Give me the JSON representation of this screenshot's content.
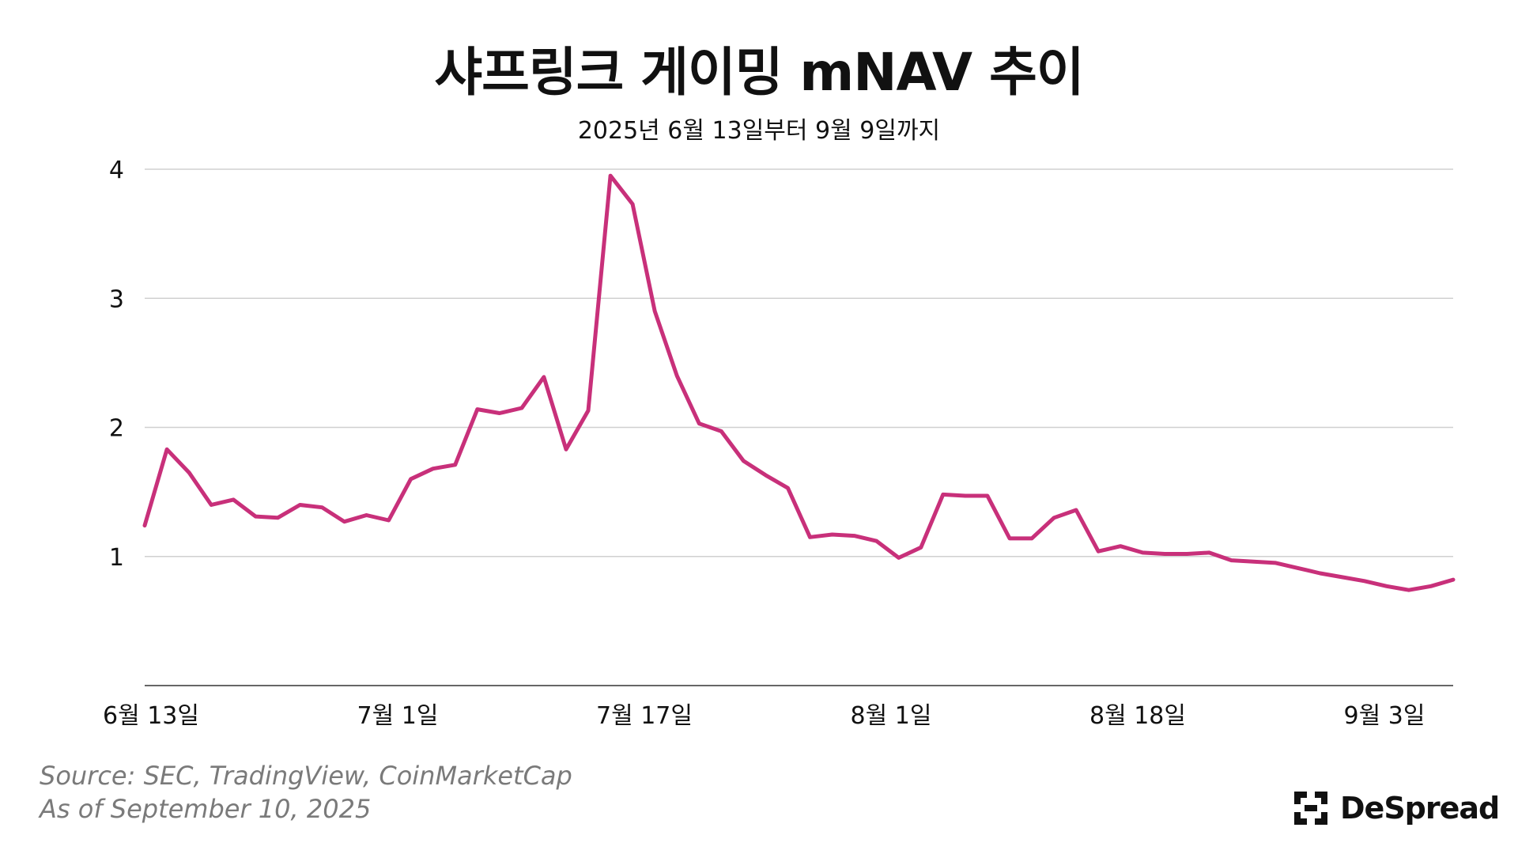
{
  "header": {
    "title": "샤프링크 게이밍 mNAV 추이",
    "subtitle": "2025년 6월 13일부터 9월 9일까지"
  },
  "footer": {
    "source_line": "Source: SEC, TradingView, CoinMarketCap",
    "date_line": "As of September 10, 2025",
    "brand_name": "DeSpread",
    "brand_icon": "despread-logo-icon"
  },
  "chart_data": {
    "type": "line",
    "title": "샤프링크 게이밍 mNAV 추이",
    "subtitle": "2025년 6월 13일부터 9월 9일까지",
    "xlabel": "",
    "ylabel": "",
    "ylim": [
      0,
      4
    ],
    "y_ticks": [
      1,
      2,
      3,
      4
    ],
    "x_ticks": [
      "6월 13일",
      "7월 1일",
      "7월 17일",
      "8월 1일",
      "8월 18일",
      "9월 3일"
    ],
    "grid": true,
    "legend": "none",
    "line_color": "#c8307a",
    "series": [
      {
        "values": [
          1.24,
          1.83,
          1.65,
          1.4,
          1.44,
          1.31,
          1.3,
          1.4,
          1.38,
          1.27,
          1.32,
          1.28,
          1.6,
          1.68,
          1.71,
          2.14,
          2.11,
          2.15,
          2.39,
          1.83,
          2.13,
          3.95,
          3.73,
          2.9,
          2.4,
          2.03,
          1.97,
          1.74,
          1.63,
          1.53,
          1.15,
          1.17,
          1.16,
          1.12,
          0.99,
          1.07,
          1.48,
          1.47,
          1.47,
          1.14,
          1.14,
          1.3,
          1.36,
          1.04,
          1.08,
          1.03,
          1.02,
          1.02,
          1.03,
          0.97,
          0.96,
          0.95,
          0.91,
          0.87,
          0.84,
          0.81,
          0.77,
          0.74,
          0.77,
          0.82
        ]
      }
    ]
  }
}
